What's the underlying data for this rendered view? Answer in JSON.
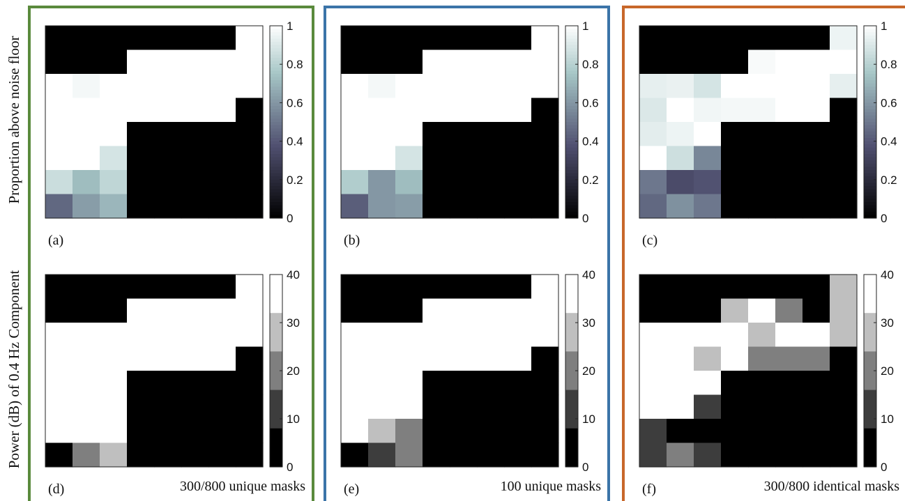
{
  "figure": {
    "row_labels": [
      "Proportion above noise floor",
      "Power (dB) of 0.4 Hz Component"
    ],
    "groups": [
      {
        "caption": "300/800 unique masks",
        "color": "#5a8a3c"
      },
      {
        "caption": "100 unique masks",
        "color": "#3b74a8"
      },
      {
        "caption": "300/800 identical masks",
        "color": "#c8672a"
      }
    ]
  },
  "chart_data": [
    {
      "type": "heatmap",
      "panel_label": "(a)",
      "colorbar": {
        "ticks": [
          "0",
          "0.2",
          "0.4",
          "0.6",
          "0.8",
          "1"
        ],
        "range": [
          0,
          1
        ],
        "colormap": "bone"
      },
      "rows": 8,
      "cols": 8,
      "values": [
        [
          0,
          0,
          0,
          0,
          0,
          0,
          0,
          1
        ],
        [
          0,
          0,
          0,
          1,
          1,
          1,
          1,
          1
        ],
        [
          1,
          0.97,
          1,
          1,
          1,
          1,
          1,
          1
        ],
        [
          1,
          1,
          1,
          1,
          1,
          1,
          1,
          0
        ],
        [
          1,
          1,
          1,
          0,
          0,
          0,
          0,
          0
        ],
        [
          1,
          1,
          0.88,
          0,
          0,
          0,
          0,
          0
        ],
        [
          0.85,
          0.72,
          0.82,
          0,
          0,
          0,
          0,
          0
        ],
        [
          0.45,
          0.62,
          0.7,
          0,
          0,
          0,
          0,
          0
        ]
      ]
    },
    {
      "type": "heatmap",
      "panel_label": "(b)",
      "colorbar": {
        "ticks": [
          "0",
          "0.2",
          "0.4",
          "0.6",
          "0.8",
          "1"
        ],
        "range": [
          0,
          1
        ],
        "colormap": "bone"
      },
      "rows": 8,
      "cols": 8,
      "values": [
        [
          0,
          0,
          0,
          0,
          0,
          0,
          0,
          1
        ],
        [
          0,
          0,
          0,
          1,
          1,
          1,
          1,
          1
        ],
        [
          1,
          0.97,
          1,
          1,
          1,
          1,
          1,
          1
        ],
        [
          1,
          1,
          1,
          1,
          1,
          1,
          1,
          0
        ],
        [
          1,
          1,
          1,
          0,
          0,
          0,
          0,
          0
        ],
        [
          1,
          1,
          0.88,
          0,
          0,
          0,
          0,
          0
        ],
        [
          0.78,
          0.6,
          0.72,
          0,
          0,
          0,
          0,
          0
        ],
        [
          0.42,
          0.6,
          0.62,
          0,
          0,
          0,
          0,
          0
        ]
      ]
    },
    {
      "type": "heatmap",
      "panel_label": "(c)",
      "colorbar": {
        "ticks": [
          "0",
          "0.2",
          "0.4",
          "0.6",
          "0.8",
          "1"
        ],
        "range": [
          0,
          1
        ],
        "colormap": "bone"
      },
      "rows": 8,
      "cols": 8,
      "values": [
        [
          0,
          0,
          0,
          0,
          0,
          0,
          0,
          0.95
        ],
        [
          0,
          0,
          0,
          0,
          0.98,
          1,
          1,
          1
        ],
        [
          0.93,
          0.94,
          0.88,
          1,
          1,
          1,
          1,
          0.93
        ],
        [
          0.9,
          1,
          0.96,
          0.97,
          0.97,
          1,
          1,
          0
        ],
        [
          0.92,
          0.95,
          1,
          0,
          0,
          0,
          0,
          0
        ],
        [
          1,
          0.86,
          0.55,
          0,
          0,
          0,
          0,
          0
        ],
        [
          0.5,
          0.35,
          0.38,
          0,
          0,
          0,
          0,
          0
        ],
        [
          0.45,
          0.58,
          0.5,
          0,
          0,
          0,
          0,
          0
        ]
      ]
    },
    {
      "type": "heatmap",
      "panel_label": "(d)",
      "colorbar": {
        "ticks": [
          "0",
          "10",
          "20",
          "30",
          "40"
        ],
        "range": [
          0,
          40
        ],
        "colormap": "gray-discrete-5"
      },
      "rows": 8,
      "cols": 8,
      "values": [
        [
          0,
          0,
          0,
          0,
          0,
          0,
          0,
          40
        ],
        [
          0,
          0,
          0,
          40,
          40,
          40,
          40,
          40
        ],
        [
          40,
          40,
          40,
          40,
          40,
          40,
          40,
          40
        ],
        [
          40,
          40,
          40,
          40,
          40,
          40,
          40,
          0
        ],
        [
          40,
          40,
          40,
          0,
          0,
          0,
          0,
          0
        ],
        [
          40,
          40,
          40,
          0,
          0,
          0,
          0,
          0
        ],
        [
          40,
          40,
          40,
          0,
          0,
          0,
          0,
          0
        ],
        [
          0,
          20,
          30,
          0,
          0,
          0,
          0,
          0
        ]
      ]
    },
    {
      "type": "heatmap",
      "panel_label": "(e)",
      "colorbar": {
        "ticks": [
          "0",
          "10",
          "20",
          "30",
          "40"
        ],
        "range": [
          0,
          40
        ],
        "colormap": "gray-discrete-5"
      },
      "rows": 8,
      "cols": 8,
      "values": [
        [
          0,
          0,
          0,
          0,
          0,
          0,
          0,
          40
        ],
        [
          0,
          0,
          0,
          40,
          40,
          40,
          40,
          40
        ],
        [
          40,
          40,
          40,
          40,
          40,
          40,
          40,
          40
        ],
        [
          40,
          40,
          40,
          40,
          40,
          40,
          40,
          0
        ],
        [
          40,
          40,
          40,
          0,
          0,
          0,
          0,
          0
        ],
        [
          40,
          40,
          40,
          0,
          0,
          0,
          0,
          0
        ],
        [
          40,
          30,
          20,
          0,
          0,
          0,
          0,
          0
        ],
        [
          0,
          10,
          20,
          0,
          0,
          0,
          0,
          0
        ]
      ]
    },
    {
      "type": "heatmap",
      "panel_label": "(f)",
      "colorbar": {
        "ticks": [
          "0",
          "10",
          "20",
          "30",
          "40"
        ],
        "range": [
          0,
          40
        ],
        "colormap": "gray-discrete-5"
      },
      "rows": 8,
      "cols": 8,
      "values": [
        [
          0,
          0,
          0,
          0,
          0,
          0,
          0,
          30
        ],
        [
          0,
          0,
          0,
          30,
          40,
          20,
          0,
          30
        ],
        [
          40,
          40,
          40,
          40,
          30,
          40,
          40,
          30
        ],
        [
          40,
          40,
          30,
          40,
          20,
          20,
          20,
          0
        ],
        [
          40,
          40,
          40,
          0,
          0,
          0,
          0,
          0
        ],
        [
          40,
          40,
          10,
          0,
          0,
          0,
          0,
          0
        ],
        [
          10,
          0,
          0,
          0,
          0,
          0,
          0,
          0
        ],
        [
          10,
          20,
          10,
          0,
          0,
          0,
          0,
          0
        ]
      ]
    }
  ]
}
